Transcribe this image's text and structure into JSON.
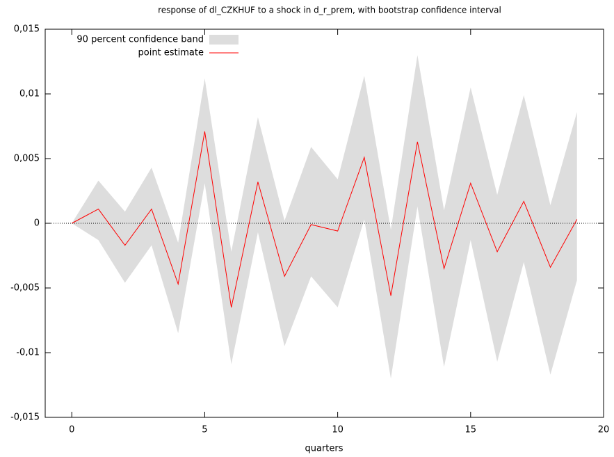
{
  "chart_data": {
    "type": "band-line",
    "title": "response of dl_CZKHUF to a shock in d_r_prem, with bootstrap confidence interval",
    "xlabel": "quarters",
    "x": [
      0,
      1,
      2,
      3,
      4,
      5,
      6,
      7,
      8,
      9,
      10,
      11,
      12,
      13,
      14,
      15,
      16,
      17,
      18,
      19
    ],
    "series": [
      {
        "name": "90 percent confidence band",
        "color": "#dddddd",
        "upper": [
          0,
          0.0033,
          0.0009,
          0.0043,
          -0.0015,
          0.0112,
          -0.0022,
          0.0082,
          0.0002,
          0.0059,
          0.0034,
          0.0114,
          -0.0005,
          0.013,
          0.001,
          0.0105,
          0.0022,
          0.0099,
          0.0014,
          0.0086
        ],
        "lower": [
          0,
          -0.0013,
          -0.0046,
          -0.0017,
          -0.0085,
          0.0031,
          -0.0109,
          -0.0007,
          -0.0095,
          -0.0041,
          -0.0065,
          0.0003,
          -0.012,
          0.0013,
          -0.0111,
          -0.0013,
          -0.0107,
          -0.003,
          -0.0117,
          -0.0044
        ]
      },
      {
        "name": "point estimate",
        "color": "#ff0000",
        "values": [
          0,
          0.0011,
          -0.0017,
          0.0011,
          -0.0047,
          0.0071,
          -0.0065,
          0.0032,
          -0.0041,
          -0.0001,
          -0.0006,
          0.0051,
          -0.0056,
          0.0063,
          -0.0035,
          0.0031,
          -0.0022,
          0.0017,
          -0.0034,
          0.0003
        ]
      }
    ],
    "xlim": [
      -1,
      20
    ],
    "xticks": [
      0,
      5,
      10,
      15,
      20
    ],
    "ylim": [
      -0.015,
      0.015
    ],
    "yticks": [
      {
        "value": -0.015,
        "label": "-0,015"
      },
      {
        "value": -0.01,
        "label": "-0,01"
      },
      {
        "value": -0.005,
        "label": "-0,005"
      },
      0,
      {
        "value": 0.005,
        "label": "0,005"
      },
      {
        "value": 0.01,
        "label": "0,01"
      },
      {
        "value": 0.015,
        "label": "0,015"
      }
    ],
    "zero_line": true,
    "legend": "top-left"
  }
}
